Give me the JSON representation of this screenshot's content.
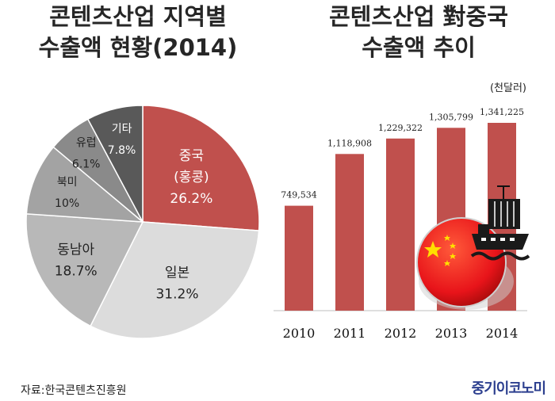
{
  "chart_data": [
    {
      "type": "pie",
      "title": "콘텐츠산업 지역별\n수출액 현황(2014)",
      "slices": [
        {
          "label": "중국\n(홍콩)",
          "value": 26.2,
          "value_label": "26.2%",
          "color": "#c0504d",
          "text_color": "#ffffff"
        },
        {
          "label": "일본",
          "value": 31.2,
          "value_label": "31.2%",
          "color": "#dcdcdc",
          "text_color": "#222222"
        },
        {
          "label": "동남아",
          "value": 18.7,
          "value_label": "18.7%",
          "color": "#b8b8b8",
          "text_color": "#222222"
        },
        {
          "label": "북미",
          "value": 10.0,
          "value_label": "10%",
          "color": "#a3a3a3",
          "text_color": "#222222"
        },
        {
          "label": "유럽",
          "value": 6.1,
          "value_label": "6.1%",
          "color": "#8a8a8a",
          "text_color": "#222222"
        },
        {
          "label": "기타",
          "value": 7.8,
          "value_label": "7.8%",
          "color": "#595959",
          "text_color": "#ffffff"
        }
      ]
    },
    {
      "type": "bar",
      "title": "콘텐츠산업 對중국\n수출액 추이",
      "unit": "(천달러)",
      "categories": [
        "2010",
        "2011",
        "2012",
        "2013",
        "2014"
      ],
      "values": [
        749534,
        1118908,
        1229322,
        1305799,
        1341225
      ],
      "value_labels": [
        "749,534",
        "1,118,908",
        "1,229,322",
        "1,305,799",
        "1,341,225"
      ],
      "ylim": [
        0,
        1341225
      ],
      "bar_color": "#c0504d"
    }
  ],
  "footer": {
    "source": "자료:한국콘텐츠진흥원",
    "brand": "중기이코노미"
  },
  "decoration": {
    "icon": "china-flag-ship-icon"
  }
}
